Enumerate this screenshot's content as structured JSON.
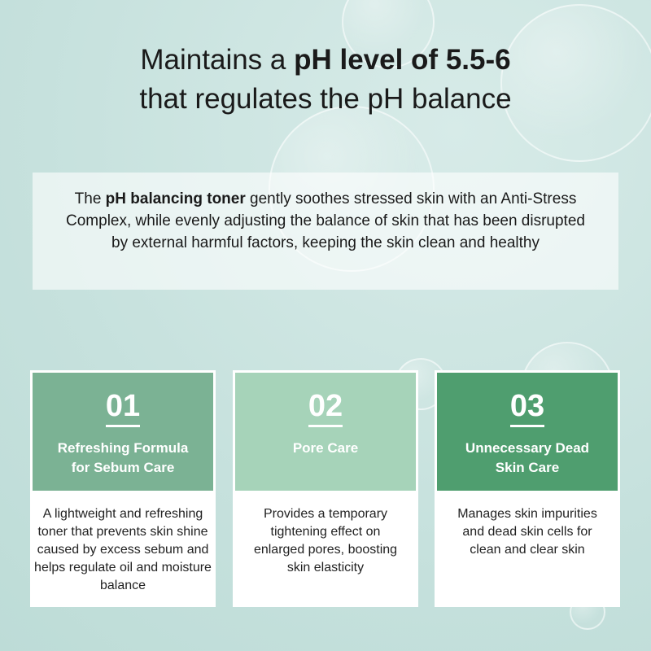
{
  "headline": {
    "pre": "Maintains a ",
    "bold": "pH level of 5.5-6",
    "line2": "that regulates the pH balance"
  },
  "description": {
    "pre": "The ",
    "bold": "pH balancing toner",
    "post": " gently soothes stressed skin with an Anti-Stress Complex, while evenly adjusting the balance of skin that has been disrupted by external harmful factors, keeping the skin clean and healthy"
  },
  "cards": [
    {
      "number": "01",
      "title_lines": [
        "Refreshing Formula",
        "for Sebum Care"
      ],
      "text": "A lightweight and refreshing toner that prevents skin shine caused by excess sebum and helps regulate oil and moisture balance",
      "color": "#7bb294"
    },
    {
      "number": "02",
      "title_lines": [
        "Pore Care",
        ""
      ],
      "text": "Provides a temporary tightening effect on enlarged pores, boosting skin elasticity",
      "color": "#a6d3b9"
    },
    {
      "number": "03",
      "title_lines": [
        "Unnecessary Dead",
        "Skin Care"
      ],
      "text": "Manages skin impurities and dead skin cells for clean and clear skin",
      "color": "#4f9e6f"
    }
  ]
}
